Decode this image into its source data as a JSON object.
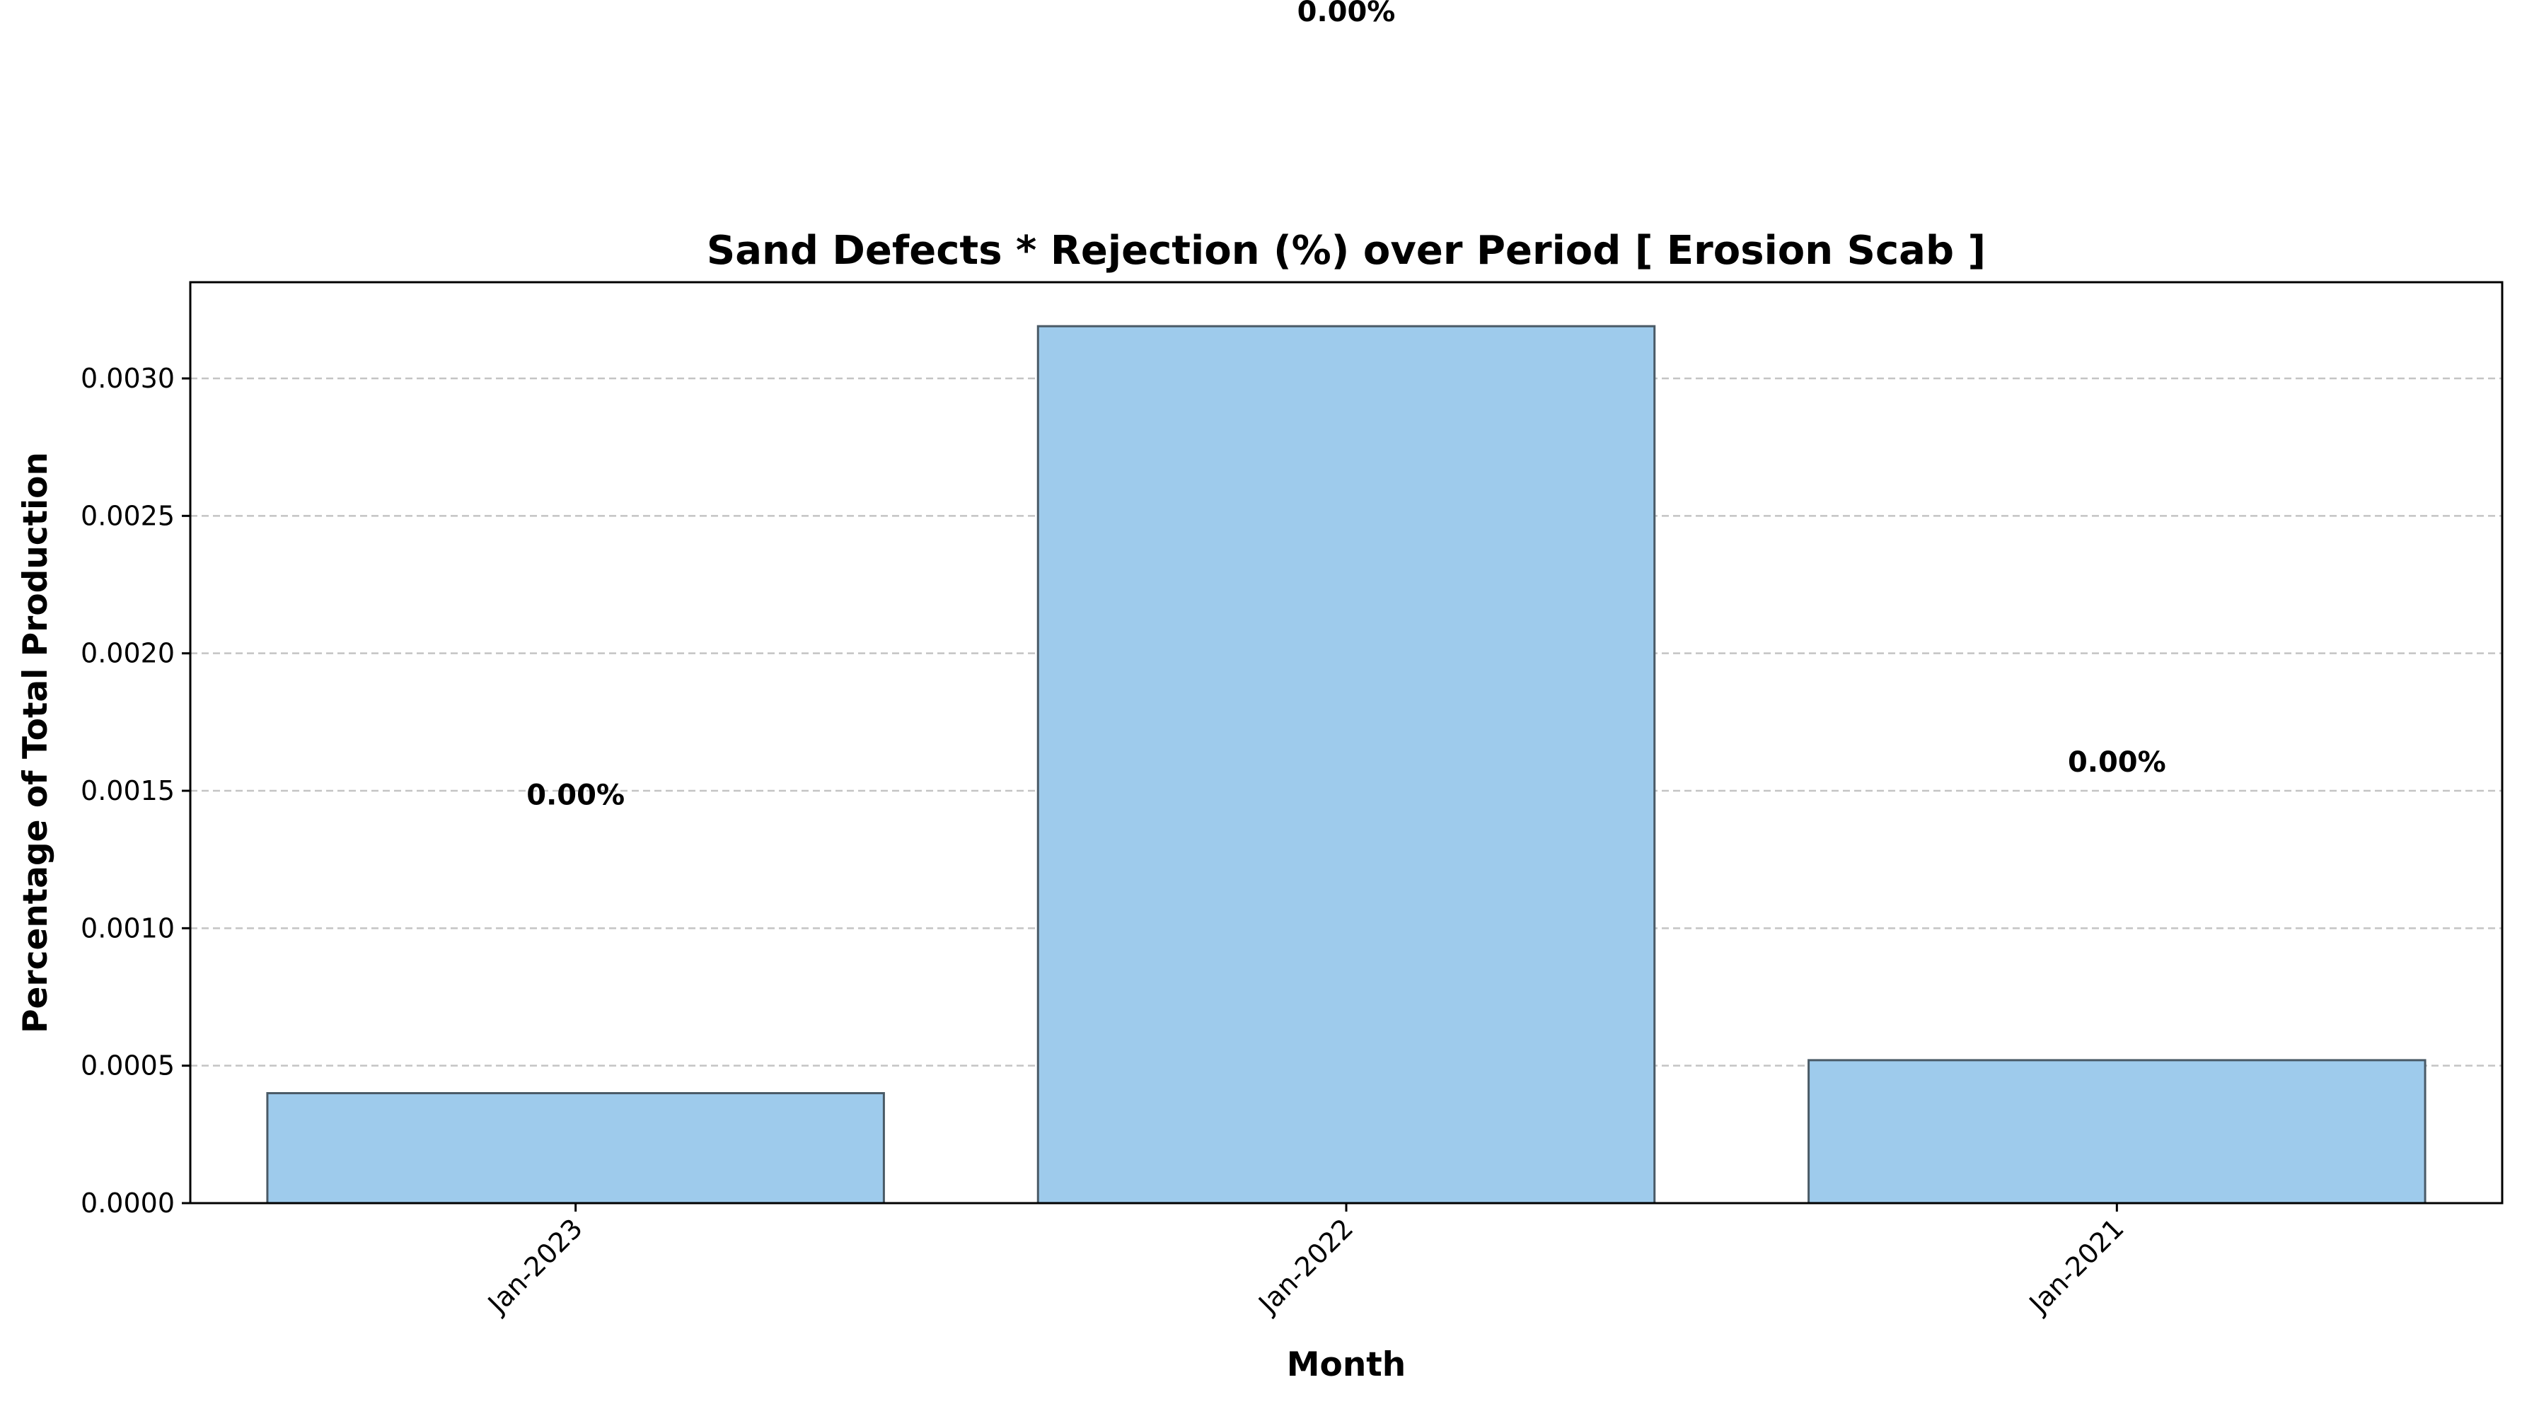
{
  "chart_data": {
    "type": "bar",
    "title": "Sand Defects * Rejection (%) over Period [ Erosion Scab ]",
    "xlabel": "Month",
    "ylabel": "Percentage of Total Production",
    "categories": [
      "Jan-2023",
      "Jan-2022",
      "Jan-2021"
    ],
    "values": [
      0.0004,
      0.00319,
      0.00052
    ],
    "data_labels": [
      "0.00%",
      "0.00%",
      "0.00%"
    ],
    "label_values": [
      0.00145,
      0.0043,
      0.00157
    ],
    "ylim": [
      0,
      0.00335
    ],
    "yticks": [
      0,
      0.0005,
      0.001,
      0.0015,
      0.002,
      0.0025,
      0.003
    ],
    "ytick_labels": [
      "0.0000",
      "0.0005",
      "0.0010",
      "0.0015",
      "0.0020",
      "0.0025",
      "0.0030"
    ],
    "grid": "y dashed",
    "bar_color": "#9ecbec",
    "bar_edge_color": "#4a5a66",
    "grid_color": "#c4c4c4"
  }
}
